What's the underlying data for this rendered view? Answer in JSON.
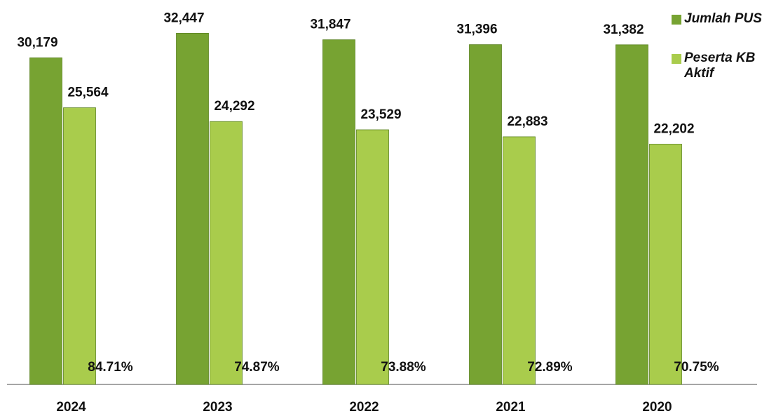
{
  "chart_data": {
    "type": "bar",
    "categories": [
      "2024",
      "2023",
      "2022",
      "2021",
      "2020"
    ],
    "series": [
      {
        "name": "Jumlah PUS",
        "color": "#77a332",
        "values": [
          30179,
          32447,
          31847,
          31396,
          31382
        ],
        "value_labels": [
          "30,179",
          "32,447",
          "31,847",
          "31,396",
          "31,382"
        ]
      },
      {
        "name": "Peserta KB Aktif",
        "color": "#a9cc4c",
        "values": [
          25564,
          24292,
          23529,
          22883,
          22202
        ],
        "value_labels": [
          "25,564",
          "24,292",
          "23,529",
          "22,883",
          "22,202"
        ]
      },
      {
        "values": [
          84.71,
          74.87,
          73.88,
          72.89,
          70.75
        ],
        "value_labels": [
          "84.71%",
          "74.87%",
          "73.88%",
          "72.89%",
          "70.75%"
        ]
      }
    ],
    "ylim": [
      0,
      35000
    ]
  }
}
